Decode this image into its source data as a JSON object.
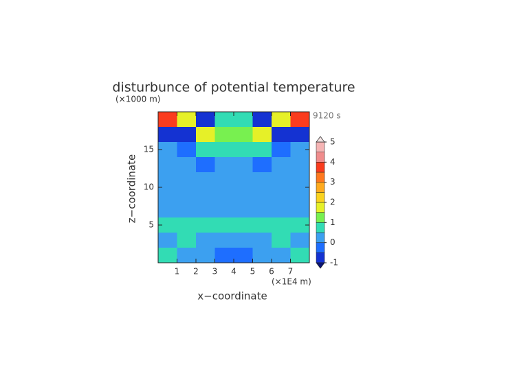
{
  "chart_data": {
    "type": "contour",
    "title": "disturbunce of potential temperature",
    "y_unit": "(×1000 m)",
    "x_unit": "(×1E4 m)",
    "annotation": "9120 s",
    "xlabel": "x−coordinate",
    "ylabel": "z−coordinate",
    "xlim": [
      0,
      8
    ],
    "ylim": [
      0,
      20
    ],
    "xticks": [
      1,
      2,
      3,
      4,
      5,
      6,
      7
    ],
    "yticks": [
      5,
      10,
      15
    ],
    "x": [
      0.5,
      1.5,
      2.5,
      3.5,
      4.5,
      5.5,
      6.5,
      7.5
    ],
    "y": [
      19,
      17,
      15,
      13,
      11,
      9,
      7,
      5,
      3,
      1
    ],
    "z": [
      [
        3.5,
        1.5,
        -0.7,
        0.5,
        0.5,
        -0.7,
        1.5,
        3.5
      ],
      [
        -0.7,
        -0.7,
        1.5,
        1.0,
        1.0,
        1.5,
        -0.7,
        -0.7
      ],
      [
        0.2,
        -0.3,
        0.6,
        0.8,
        0.8,
        0.6,
        -0.3,
        0.2
      ],
      [
        0.2,
        0.1,
        -0.2,
        0.4,
        0.4,
        -0.2,
        0.1,
        0.2
      ],
      [
        0.2,
        0.2,
        0.2,
        0.3,
        0.3,
        0.2,
        0.2,
        0.2
      ],
      [
        0.2,
        0.2,
        0.2,
        0.2,
        0.2,
        0.2,
        0.2,
        0.2
      ],
      [
        0.3,
        0.2,
        0.3,
        0.3,
        0.3,
        0.3,
        0.2,
        0.3
      ],
      [
        0.7,
        0.7,
        0.6,
        0.7,
        0.7,
        0.6,
        0.7,
        0.7
      ],
      [
        0.3,
        0.6,
        0.3,
        0.2,
        0.2,
        0.3,
        0.6,
        0.3
      ],
      [
        0.8,
        0.3,
        0.0,
        -0.3,
        -0.3,
        0.0,
        0.3,
        0.8
      ]
    ],
    "levels": [
      -1,
      -0.5,
      0,
      0.5,
      1,
      1.5,
      2,
      2.5,
      3,
      3.5,
      4,
      4.5,
      5
    ],
    "colors": [
      "#1432d2",
      "#1e6eff",
      "#3ca0f0",
      "#32dcb4",
      "#78f050",
      "#e6f028",
      "#fad21e",
      "#ffaa1e",
      "#ff781e",
      "#fa3c1e",
      "#f08c8c",
      "#f5b4b4"
    ],
    "under_color": "#0a1478",
    "over_color": "#f4e4e4",
    "cticks": [
      -1,
      0,
      1,
      2,
      3,
      4,
      5
    ]
  }
}
